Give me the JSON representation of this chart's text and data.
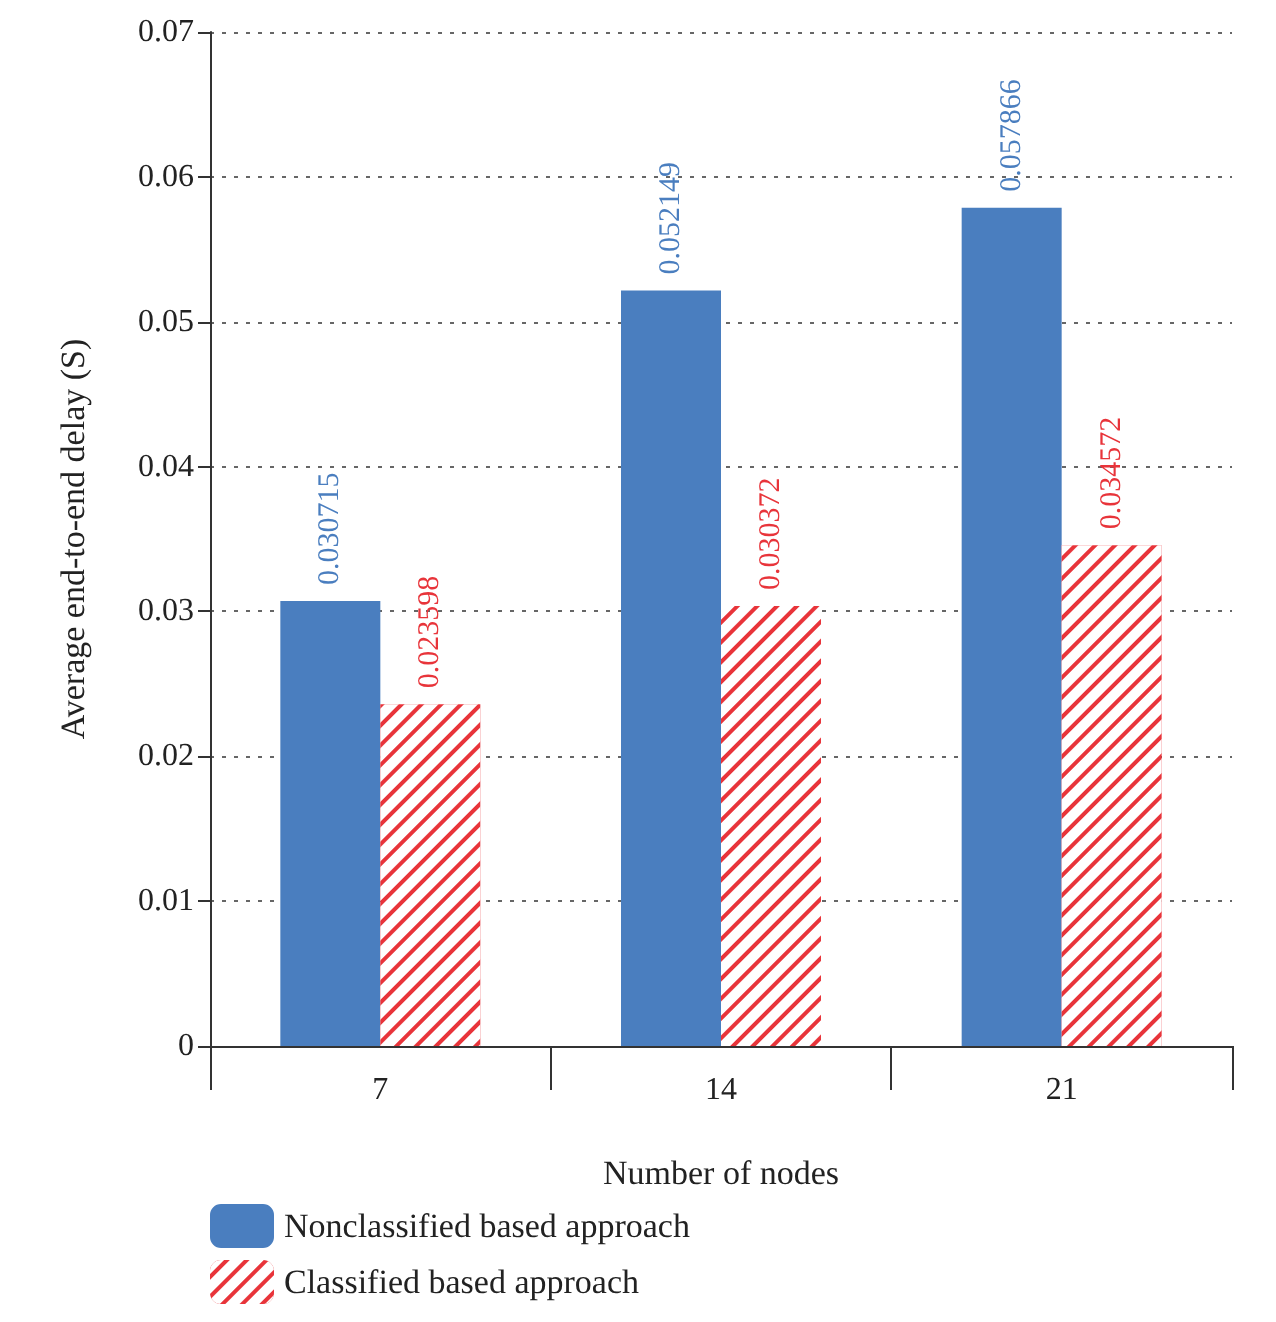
{
  "chart_data": {
    "type": "bar",
    "xlabel": "Number of nodes",
    "ylabel": "Average end-to-end delay (S)",
    "categories": [
      "7",
      "14",
      "21"
    ],
    "series": [
      {
        "name": "Nonclassified based approach",
        "color": "#4a7ebf",
        "values": [
          0.030715,
          0.052149,
          0.057866
        ]
      },
      {
        "name": "Classified based approach",
        "color": "#e8343a",
        "values": [
          0.023598,
          0.030372,
          0.034572
        ]
      }
    ],
    "ylim": [
      0,
      0.07
    ],
    "yticks": [
      0,
      0.01,
      0.02,
      0.03,
      0.04,
      0.05,
      0.06,
      0.07
    ],
    "grid": "y",
    "legend": "bottom left",
    "data_labels": true
  }
}
